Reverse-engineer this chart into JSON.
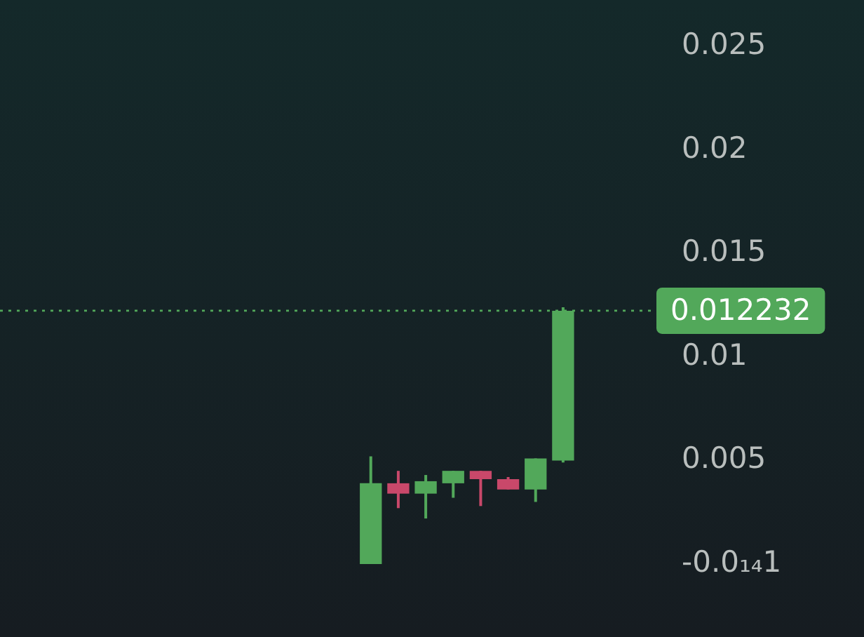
{
  "chart_data": {
    "type": "candlestick",
    "categories": [
      null,
      null,
      null,
      null,
      null,
      null,
      null,
      null,
      null,
      null,
      null,
      null,
      null,
      null,
      null,
      null,
      null,
      null,
      null,
      null,
      null,
      null,
      null,
      null
    ],
    "ohlc": [
      null,
      null,
      null,
      null,
      null,
      null,
      null,
      null,
      null,
      null,
      null,
      null,
      null,
      [
        0.0,
        0.0052,
        0.0,
        0.0039
      ],
      [
        0.0039,
        0.0045,
        0.0027,
        0.0034
      ],
      [
        0.0034,
        0.0043,
        0.0022,
        0.004
      ],
      [
        0.0039,
        0.0045,
        0.0032,
        0.0045
      ],
      [
        0.0045,
        0.0045,
        0.0028,
        0.0041
      ],
      [
        0.0041,
        0.0042,
        0.0036,
        0.0036
      ],
      [
        0.0036,
        0.0051,
        0.003,
        0.0051
      ],
      [
        0.005,
        0.0124,
        0.0049,
        0.012232
      ],
      null,
      null,
      null
    ],
    "colors": [
      null,
      null,
      null,
      null,
      null,
      null,
      null,
      null,
      null,
      null,
      null,
      null,
      null,
      "#52a85a",
      "#c9486a",
      "#52a85a",
      "#52a85a",
      "#c9486a",
      "#c9486a",
      "#52a85a",
      "#52a85a",
      null,
      null,
      null
    ],
    "ylim": [
      0,
      0.025
    ],
    "yticks": [
      {
        "value": 0,
        "label": "-0.0₁₄1"
      },
      0.005,
      0.01,
      0.015,
      0.02,
      0.025
    ],
    "ref_lines": [
      {
        "axis": "y",
        "value": 0.012232,
        "label": "0.012232",
        "color": "#52a85a",
        "line_style": "dotted"
      }
    ]
  }
}
